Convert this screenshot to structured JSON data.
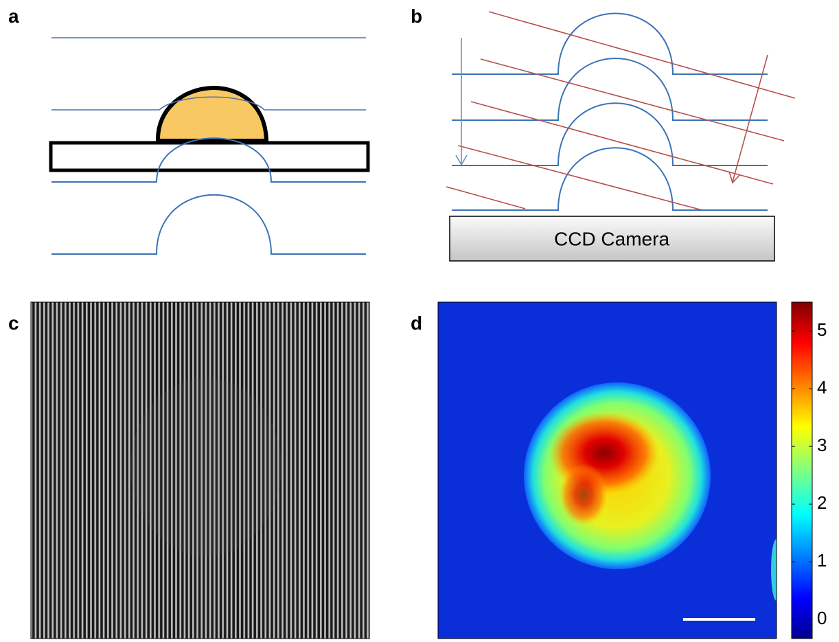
{
  "panels": [
    {
      "label": "a"
    },
    {
      "label": "b",
      "camera_label": "CCD Camera"
    },
    {
      "label": "c"
    },
    {
      "label": "d",
      "colorbar": {
        "ylim": [
          -0.33,
          5.5
        ],
        "yticks": [
          0,
          1,
          2,
          3,
          4,
          5
        ]
      }
    }
  ]
}
